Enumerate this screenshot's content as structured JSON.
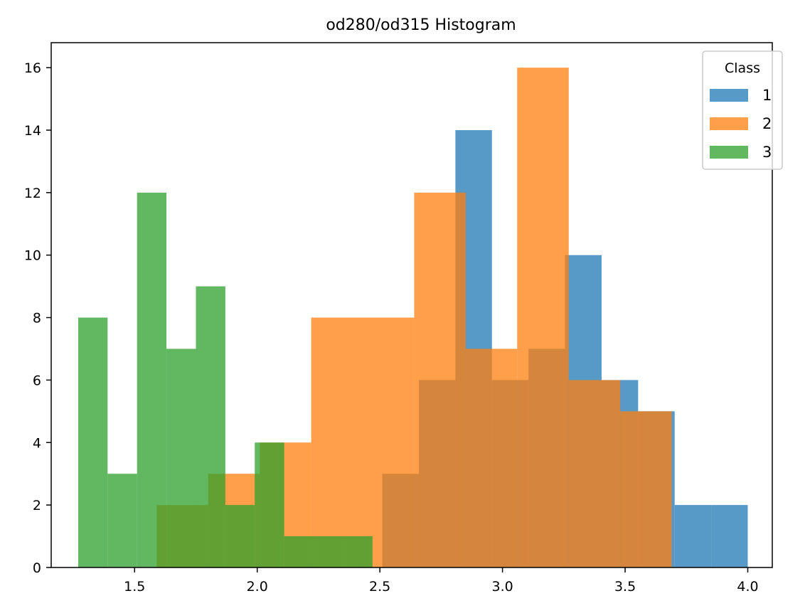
{
  "chart_data": {
    "type": "bar",
    "title": "od280/od315 Histogram",
    "xlabel": "",
    "ylabel": "",
    "xlim": [
      1.16,
      4.1
    ],
    "ylim": [
      0,
      16.8
    ],
    "xticks": [
      1.5,
      2.0,
      2.5,
      3.0,
      3.5,
      4.0
    ],
    "xtick_labels": [
      "1.5",
      "2.0",
      "2.5",
      "3.0",
      "3.5",
      "4.0"
    ],
    "yticks": [
      0,
      2,
      4,
      6,
      8,
      10,
      12,
      14,
      16
    ],
    "ytick_labels": [
      "0",
      "2",
      "4",
      "6",
      "8",
      "10",
      "12",
      "14",
      "16"
    ],
    "legend": {
      "title": "Class",
      "position": "top-right"
    },
    "series": [
      {
        "name": "1",
        "color": "#1f77b4",
        "bin_edges": [
          2.51,
          2.659,
          2.808,
          2.957,
          3.106,
          3.255,
          3.404,
          3.553,
          3.702,
          3.851,
          4.0
        ],
        "counts": [
          3,
          6,
          14,
          6,
          7,
          10,
          6,
          5,
          2,
          2
        ]
      },
      {
        "name": "2",
        "color": "#ff7f0e",
        "bin_edges": [
          1.59,
          1.8,
          2.01,
          2.22,
          2.43,
          2.64,
          2.85,
          3.06,
          3.27,
          3.48,
          3.69
        ],
        "counts": [
          2,
          3,
          4,
          8,
          8,
          12,
          7,
          16,
          6,
          5
        ]
      },
      {
        "name": "3",
        "color": "#2ca02c",
        "bin_edges": [
          1.27,
          1.39,
          1.51,
          1.63,
          1.75,
          1.87,
          1.99,
          2.11,
          2.23,
          2.35,
          2.47
        ],
        "counts": [
          8,
          3,
          12,
          7,
          9,
          2,
          4,
          1,
          1,
          1
        ]
      }
    ],
    "alpha": 0.75,
    "grid": false
  }
}
